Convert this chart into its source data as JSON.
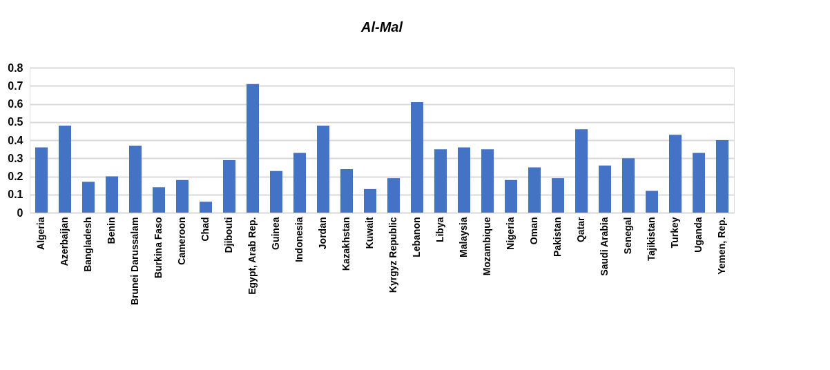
{
  "chart_data": {
    "type": "bar",
    "title": "Al-Mal",
    "categories": [
      "Algeria",
      "Azerbaijan",
      "Bangladesh",
      "Benin",
      "Brunei Darussalam",
      "Burkina Faso",
      "Cameroon",
      "Chad",
      "Djibouti",
      "Egypt, Arab Rep.",
      "Guinea",
      "Indonesia",
      "Jordan",
      "Kazakhstan",
      "Kuwait",
      "Kyrgyz Republic",
      "Lebanon",
      "Libya",
      "Malaysia",
      "Mozambique",
      "Nigeria",
      "Oman",
      "Pakistan",
      "Qatar",
      "Saudi Arabia",
      "Senegal",
      "Tajikistan",
      "Turkey",
      "Uganda",
      "Yemen, Rep."
    ],
    "values": [
      0.36,
      0.48,
      0.17,
      0.2,
      0.37,
      0.14,
      0.18,
      0.06,
      0.29,
      0.71,
      0.23,
      0.33,
      0.48,
      0.24,
      0.13,
      0.19,
      0.61,
      0.35,
      0.36,
      0.35,
      0.18,
      0.25,
      0.19,
      0.46,
      0.26,
      0.3,
      0.12,
      0.43,
      0.33,
      0.4
    ],
    "color": "#4472c4",
    "ylim": [
      0,
      0.8
    ],
    "yticks": [
      0,
      0.1,
      0.2,
      0.3,
      0.4,
      0.5,
      0.6,
      0.7,
      0.8
    ],
    "grid": "y"
  }
}
